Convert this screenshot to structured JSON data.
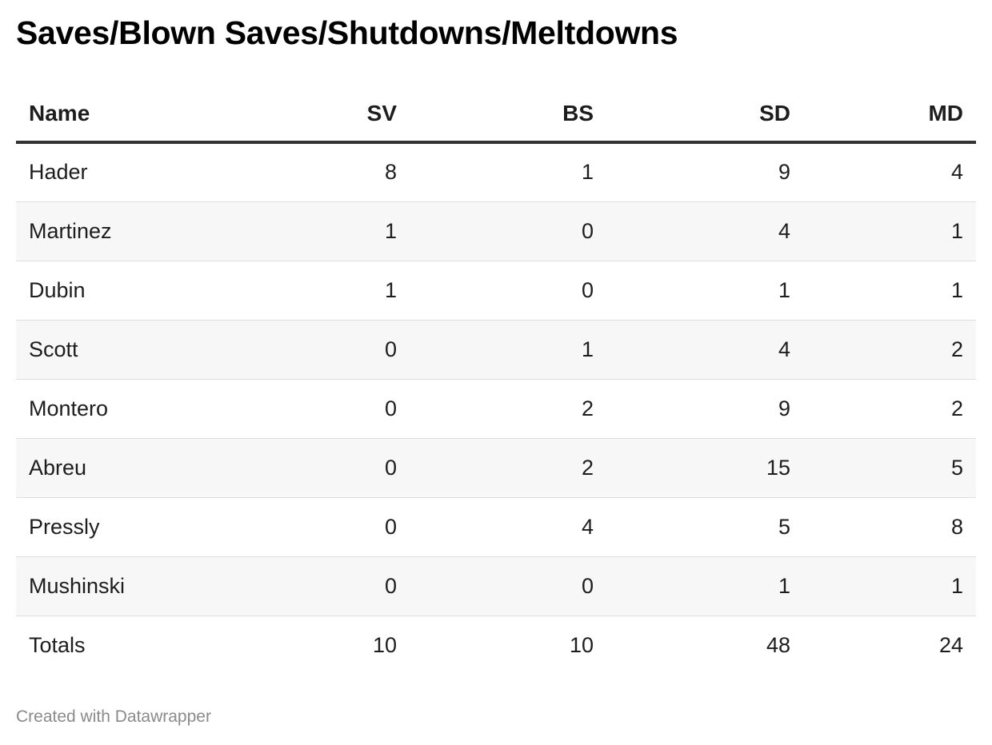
{
  "title": "Saves/Blown Saves/Shutdowns/Meltdowns",
  "footer": "Created with Datawrapper",
  "chart_data": {
    "type": "table",
    "title": "Saves/Blown Saves/Shutdowns/Meltdowns",
    "columns": [
      "Name",
      "SV",
      "BS",
      "SD",
      "MD"
    ],
    "rows": [
      [
        "Hader",
        "8",
        "1",
        "9",
        "4"
      ],
      [
        "Martinez",
        "1",
        "0",
        "4",
        "1"
      ],
      [
        "Dubin",
        "1",
        "0",
        "1",
        "1"
      ],
      [
        "Scott",
        "0",
        "1",
        "4",
        "2"
      ],
      [
        "Montero",
        "0",
        "2",
        "9",
        "2"
      ],
      [
        "Abreu",
        "0",
        "2",
        "15",
        "5"
      ],
      [
        "Pressly",
        "0",
        "4",
        "5",
        "8"
      ],
      [
        "Mushinski",
        "0",
        "0",
        "1",
        "1"
      ],
      [
        "Totals",
        "10",
        "10",
        "48",
        "24"
      ]
    ]
  }
}
